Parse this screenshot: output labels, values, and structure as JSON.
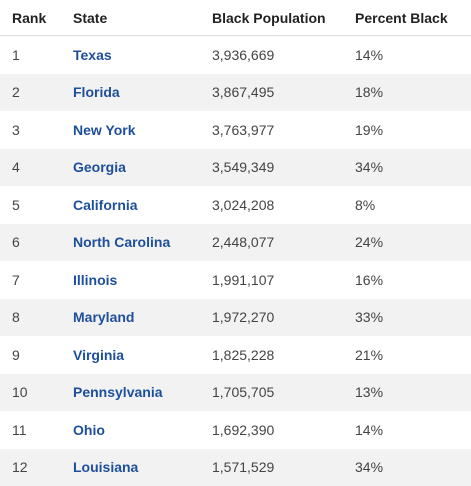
{
  "table": {
    "headers": [
      "Rank",
      "State",
      "Black Population",
      "Percent Black"
    ],
    "rows": [
      {
        "rank": "1",
        "state": "Texas",
        "population": "3,936,669",
        "percent": "14%"
      },
      {
        "rank": "2",
        "state": "Florida",
        "population": "3,867,495",
        "percent": "18%"
      },
      {
        "rank": "3",
        "state": "New York",
        "population": "3,763,977",
        "percent": "19%"
      },
      {
        "rank": "4",
        "state": "Georgia",
        "population": "3,549,349",
        "percent": "34%"
      },
      {
        "rank": "5",
        "state": "California",
        "population": "3,024,208",
        "percent": "8%"
      },
      {
        "rank": "6",
        "state": "North Carolina",
        "population": "2,448,077",
        "percent": "24%"
      },
      {
        "rank": "7",
        "state": "Illinois",
        "population": "1,991,107",
        "percent": "16%"
      },
      {
        "rank": "8",
        "state": "Maryland",
        "population": "1,972,270",
        "percent": "33%"
      },
      {
        "rank": "9",
        "state": "Virginia",
        "population": "1,825,228",
        "percent": "21%"
      },
      {
        "rank": "10",
        "state": "Pennsylvania",
        "population": "1,705,705",
        "percent": "13%"
      },
      {
        "rank": "11",
        "state": "Ohio",
        "population": "1,692,390",
        "percent": "14%"
      },
      {
        "rank": "12",
        "state": "Louisiana",
        "population": "1,571,529",
        "percent": "34%"
      }
    ]
  },
  "colors": {
    "link": "#1e4f9c",
    "stripe": "#f2f2f2",
    "text": "#444444"
  }
}
